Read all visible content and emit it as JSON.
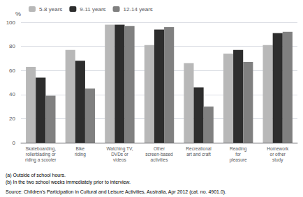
{
  "chart_data": {
    "type": "bar",
    "categories": [
      "Skateboarding,\nrollerblading or\nriding a scooter",
      "Bike\nriding",
      "Watching TV,\nDVDs or\nvideos",
      "Other\nscreen-based\nactivities",
      "Recreational\nart and craft",
      "Reading\nfor\npleasure",
      "Homework\nor other\nstudy"
    ],
    "series": [
      {
        "name": "5-8 years",
        "color": "#b8b8b8",
        "values": [
          63,
          77,
          98,
          81,
          66,
          74,
          81
        ]
      },
      {
        "name": "9-11 years",
        "color": "#2d2d2d",
        "values": [
          54,
          68,
          98,
          94,
          46,
          77,
          91
        ]
      },
      {
        "name": "12-14 years",
        "color": "#808080",
        "values": [
          39,
          45,
          97,
          96,
          30,
          67,
          92
        ]
      }
    ],
    "ylabel": "%",
    "ylim": [
      0,
      100
    ],
    "yticks": [
      0,
      20,
      40,
      60,
      80,
      100
    ],
    "grid": true,
    "legend": "upper left",
    "annotations": [
      "(a) Outside of school hours.",
      "(b) In the two school weeks immediately prior to interview.",
      "Source: Children's Participation in Cultural and Leisure Activities, Australia, Apr 2012 (cat. no. 4901.0)."
    ]
  }
}
